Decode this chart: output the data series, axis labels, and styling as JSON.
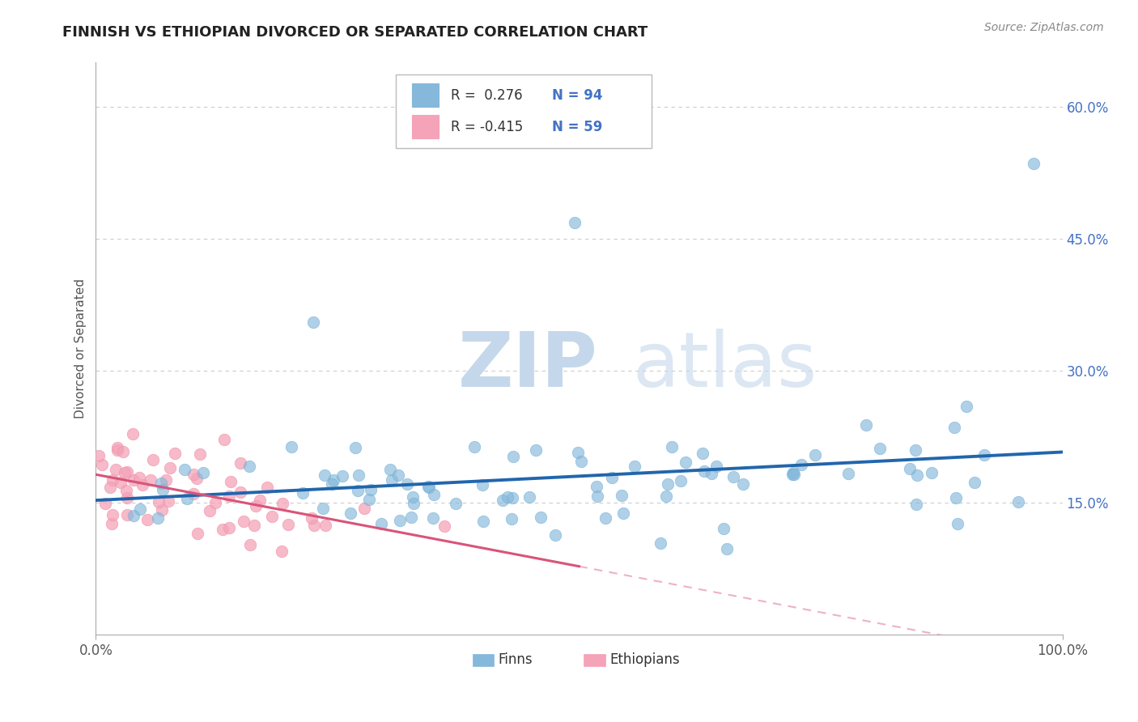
{
  "title": "FINNISH VS ETHIOPIAN DIVORCED OR SEPARATED CORRELATION CHART",
  "source": "Source: ZipAtlas.com",
  "ylabel": "Divorced or Separated",
  "watermark_zip": "ZIP",
  "watermark_atlas": "atlas",
  "xlim": [
    0.0,
    1.0
  ],
  "ylim": [
    0.0,
    0.65
  ],
  "y_ticks": [
    0.15,
    0.3,
    0.45,
    0.6
  ],
  "y_tick_labels": [
    "15.0%",
    "30.0%",
    "45.0%",
    "60.0%"
  ],
  "legend_r_finn": " 0.276",
  "legend_n_finn": "94",
  "legend_r_eth": "-0.415",
  "legend_n_eth": "59",
  "finn_color": "#85b8da",
  "finn_color_edge": "#6baed6",
  "eth_color": "#f4a3b8",
  "eth_color_edge": "#f08fac",
  "finn_line_color": "#2166ac",
  "eth_line_color": "#d9547a",
  "background_color": "#ffffff",
  "grid_color": "#cccccc",
  "tick_label_color": "#4472c4",
  "title_color": "#222222",
  "source_color": "#888888",
  "ylabel_color": "#555555",
  "legend_text_color_R": "#333333",
  "legend_text_color_N": "#4472c4"
}
